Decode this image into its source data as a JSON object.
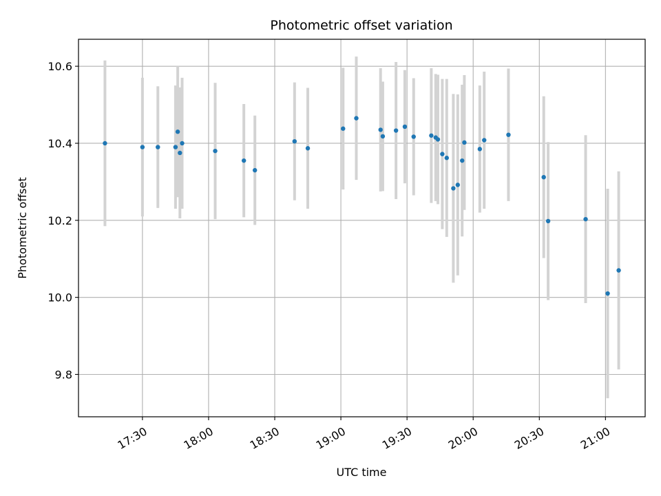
{
  "chart_data": {
    "type": "scatter",
    "title": "Photometric offset variation",
    "xlabel": "UTC time",
    "ylabel": "Photometric offset",
    "x_axis": "time",
    "xlim": [
      "17:01",
      "21:18"
    ],
    "ylim": [
      9.69,
      10.67
    ],
    "x_ticks": [
      "17:30",
      "18:00",
      "18:30",
      "19:00",
      "19:30",
      "20:00",
      "20:30",
      "21:00"
    ],
    "y_ticks": [
      9.8,
      10.0,
      10.2,
      10.4,
      10.6
    ],
    "grid": true,
    "marker_color": "#1f77b4",
    "errorbar_color": "#d3d3d3",
    "points": [
      {
        "x": "17:13",
        "y": 10.4,
        "err": 0.215
      },
      {
        "x": "17:30",
        "y": 10.39,
        "err": 0.18
      },
      {
        "x": "17:37",
        "y": 10.39,
        "err": 0.158
      },
      {
        "x": "17:45",
        "y": 10.39,
        "err": 0.16
      },
      {
        "x": "17:46",
        "y": 10.43,
        "err": 0.17
      },
      {
        "x": "17:47",
        "y": 10.375,
        "err": 0.17
      },
      {
        "x": "17:48",
        "y": 10.4,
        "err": 0.17
      },
      {
        "x": "18:03",
        "y": 10.38,
        "err": 0.177
      },
      {
        "x": "18:16",
        "y": 10.355,
        "err": 0.147
      },
      {
        "x": "18:21",
        "y": 10.33,
        "err": 0.142
      },
      {
        "x": "18:39",
        "y": 10.405,
        "err": 0.153
      },
      {
        "x": "18:45",
        "y": 10.387,
        "err": 0.157
      },
      {
        "x": "19:01",
        "y": 10.438,
        "err": 0.158
      },
      {
        "x": "19:07",
        "y": 10.465,
        "err": 0.16
      },
      {
        "x": "19:18",
        "y": 10.435,
        "err": 0.16
      },
      {
        "x": "19:19",
        "y": 10.418,
        "err": 0.142
      },
      {
        "x": "19:25",
        "y": 10.433,
        "err": 0.178
      },
      {
        "x": "19:29",
        "y": 10.443,
        "err": 0.147
      },
      {
        "x": "19:33",
        "y": 10.417,
        "err": 0.152
      },
      {
        "x": "19:41",
        "y": 10.42,
        "err": 0.175
      },
      {
        "x": "19:43",
        "y": 10.415,
        "err": 0.165
      },
      {
        "x": "19:44",
        "y": 10.41,
        "err": 0.168
      },
      {
        "x": "19:46",
        "y": 10.372,
        "err": 0.195
      },
      {
        "x": "19:48",
        "y": 10.362,
        "err": 0.205
      },
      {
        "x": "19:51",
        "y": 10.283,
        "err": 0.245
      },
      {
        "x": "19:53",
        "y": 10.292,
        "err": 0.235
      },
      {
        "x": "19:55",
        "y": 10.355,
        "err": 0.197
      },
      {
        "x": "19:56",
        "y": 10.402,
        "err": 0.175
      },
      {
        "x": "20:03",
        "y": 10.385,
        "err": 0.165
      },
      {
        "x": "20:05",
        "y": 10.408,
        "err": 0.178
      },
      {
        "x": "20:16",
        "y": 10.422,
        "err": 0.172
      },
      {
        "x": "20:32",
        "y": 10.312,
        "err": 0.21
      },
      {
        "x": "20:34",
        "y": 10.198,
        "err": 0.205
      },
      {
        "x": "20:51",
        "y": 10.203,
        "err": 0.218
      },
      {
        "x": "21:01",
        "y": 10.01,
        "err": 0.272
      },
      {
        "x": "21:06",
        "y": 10.07,
        "err": 0.257
      }
    ]
  }
}
